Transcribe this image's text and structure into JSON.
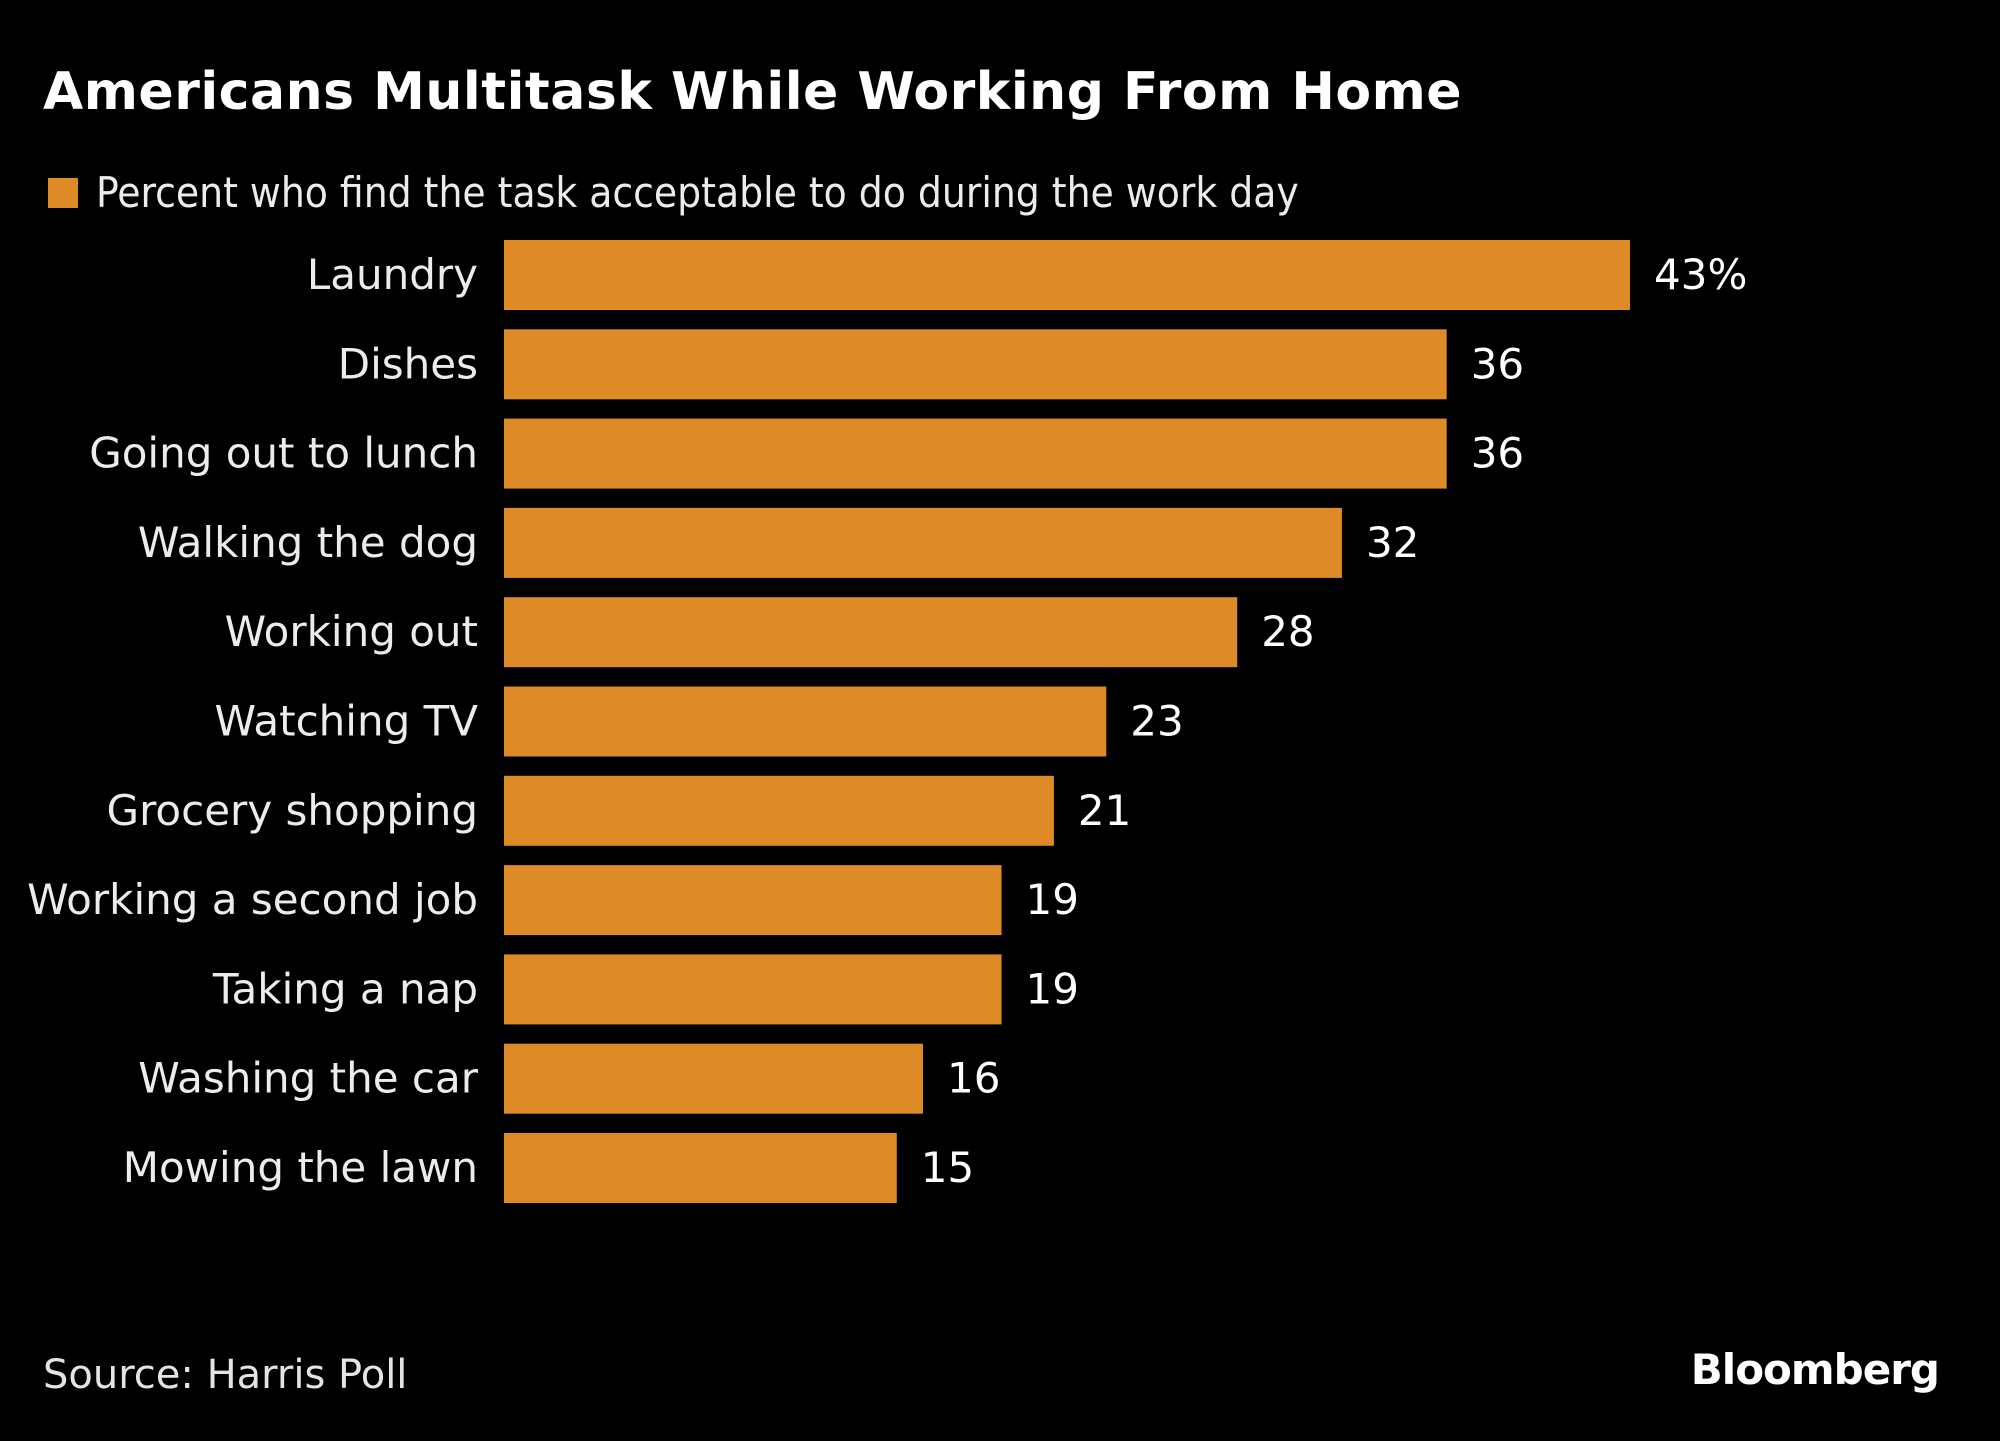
{
  "chart_data": {
    "type": "bar",
    "orientation": "horizontal",
    "title": "Americans Multitask While Working From Home",
    "legend": "Percent who find the task acceptable to do during the work day",
    "legend_position": "top-left",
    "categories": [
      "Laundry",
      "Dishes",
      "Going out to lunch",
      "Walking the dog",
      "Working out",
      "Watching TV",
      "Grocery shopping",
      "Working a second job",
      "Taking a nap",
      "Washing the car",
      "Mowing the lawn"
    ],
    "values": [
      43,
      36,
      36,
      32,
      28,
      23,
      21,
      19,
      19,
      16,
      15
    ],
    "value_labels": [
      "43%",
      "36",
      "36",
      "32",
      "28",
      "23",
      "21",
      "19",
      "19",
      "16",
      "15"
    ],
    "xlim": [
      0,
      43
    ],
    "grid": false,
    "bar_color": "#DD8A27"
  },
  "footer": {
    "source": "Source: Harris Poll",
    "brand": "Bloomberg"
  }
}
